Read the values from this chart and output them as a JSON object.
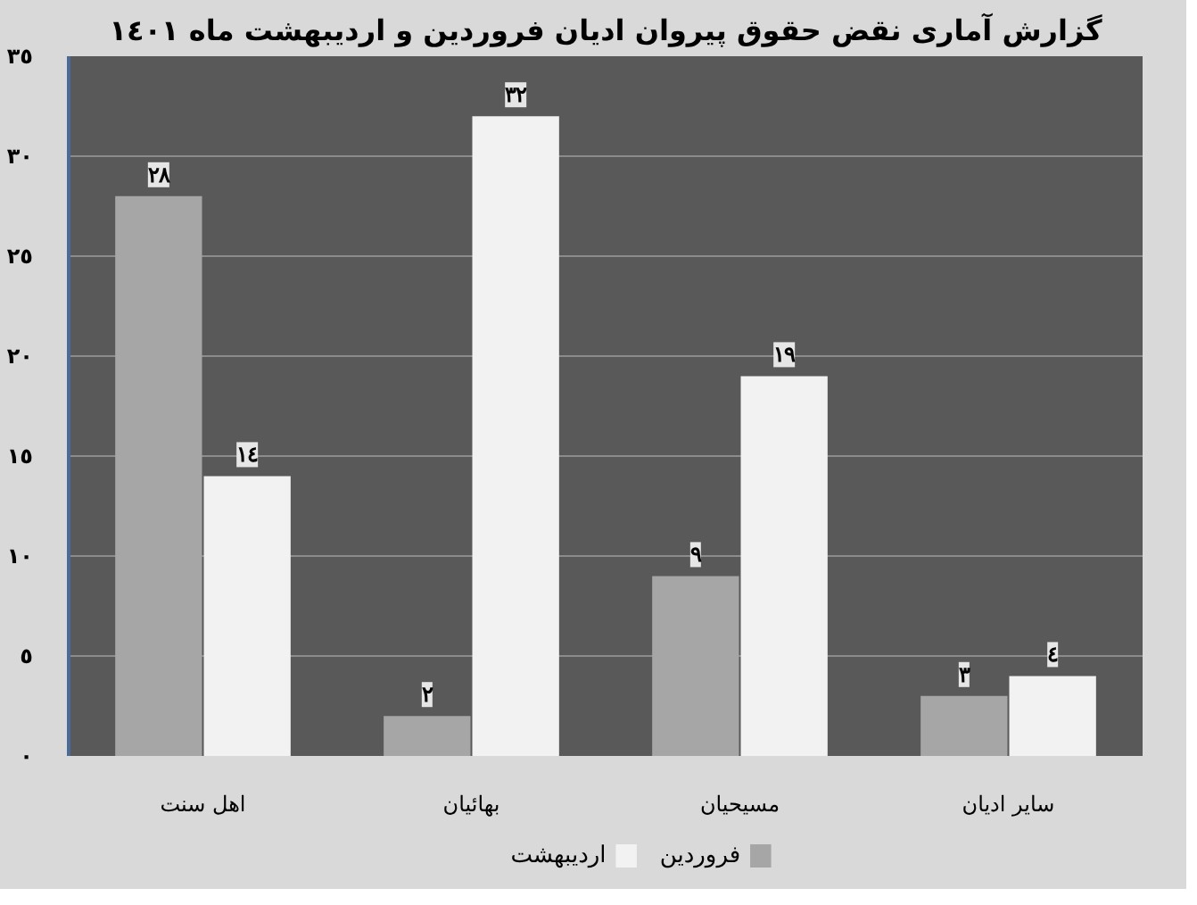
{
  "chart_data": {
    "type": "bar",
    "title": "گزارش آماری نقض حقوق پیروان ادیان فروردین و اردیبهشت ماه ١٤٠١",
    "categories": [
      "اهل سنت",
      "بهائیان",
      "مسیحیان",
      "سایر ادیان"
    ],
    "series": [
      {
        "name": "فروردین",
        "color": "#a6a6a6",
        "values": [
          28,
          2,
          9,
          3
        ],
        "value_labels": [
          "٢٨",
          "٢",
          "٩",
          "٣"
        ]
      },
      {
        "name": "اردیبهشت",
        "color": "#f2f2f2",
        "values": [
          14,
          32,
          19,
          4
        ],
        "value_labels": [
          "١٤",
          "٣٢",
          "١٩",
          "٤"
        ]
      }
    ],
    "ylim": [
      0,
      35
    ],
    "yticks": [
      {
        "value": 0,
        "label": "٠"
      },
      {
        "value": 5,
        "label": "٥"
      },
      {
        "value": 10,
        "label": "١٠"
      },
      {
        "value": 15,
        "label": "١٥"
      },
      {
        "value": 20,
        "label": "٢٠"
      },
      {
        "value": 25,
        "label": "٢٥"
      },
      {
        "value": 30,
        "label": "٣٠"
      },
      {
        "value": 35,
        "label": "٣٥"
      }
    ],
    "grid": "y",
    "legend": "bottom"
  }
}
